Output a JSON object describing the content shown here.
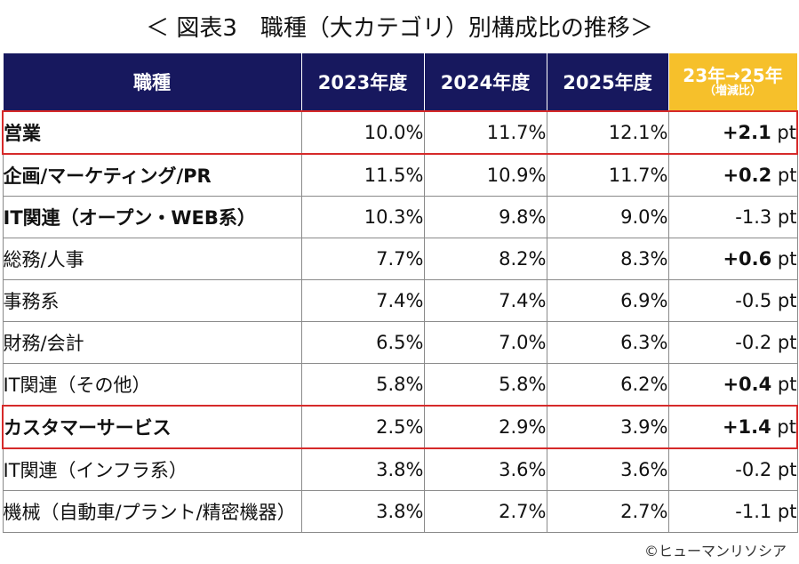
{
  "title": "＜ 図表3　職種（大カテゴリ）別構成比の推移＞",
  "copyright": "©ヒューマンリソシア",
  "chart_data": {
    "type": "table",
    "title": "＜ 図表3　職種（大カテゴリ）別構成比の推移＞",
    "columns": [
      "職種",
      "2023年度",
      "2024年度",
      "2025年度",
      "23年→25年",
      "（増減比）"
    ],
    "unit": "%",
    "highlight_color": "#d62a2a",
    "header_color": "#17185e",
    "diff_header_color": "#f6c02b",
    "rows": [
      {
        "job": "営業",
        "y2023": "10.0%",
        "y2024": "11.7%",
        "y2025": "12.1%",
        "diff": "+2.1",
        "diff_unit": "pt",
        "highlighted": true,
        "bold_label": true
      },
      {
        "job": "企画/マーケティング/PR",
        "y2023": "11.5%",
        "y2024": "10.9%",
        "y2025": "11.7%",
        "diff": "+0.2",
        "diff_unit": "pt",
        "highlighted": false,
        "bold_label": true
      },
      {
        "job": "IT関連（オープン・WEB系）",
        "y2023": "10.3%",
        "y2024": "9.8%",
        "y2025": "9.0%",
        "diff": "-1.3",
        "diff_unit": "pt",
        "highlighted": false,
        "bold_label": true
      },
      {
        "job": "総務/人事",
        "y2023": "7.7%",
        "y2024": "8.2%",
        "y2025": "8.3%",
        "diff": "+0.6",
        "diff_unit": "pt",
        "highlighted": false,
        "bold_label": false
      },
      {
        "job": "事務系",
        "y2023": "7.4%",
        "y2024": "7.4%",
        "y2025": "6.9%",
        "diff": "-0.5",
        "diff_unit": "pt",
        "highlighted": false,
        "bold_label": false
      },
      {
        "job": "財務/会計",
        "y2023": "6.5%",
        "y2024": "7.0%",
        "y2025": "6.3%",
        "diff": "-0.2",
        "diff_unit": "pt",
        "highlighted": false,
        "bold_label": false
      },
      {
        "job": "IT関連（その他）",
        "y2023": "5.8%",
        "y2024": "5.8%",
        "y2025": "6.2%",
        "diff": "+0.4",
        "diff_unit": "pt",
        "highlighted": false,
        "bold_label": false
      },
      {
        "job": "カスタマーサービス",
        "y2023": "2.5%",
        "y2024": "2.9%",
        "y2025": "3.9%",
        "diff": "+1.4",
        "diff_unit": "pt",
        "highlighted": true,
        "bold_label": true
      },
      {
        "job": "IT関連（インフラ系）",
        "y2023": "3.8%",
        "y2024": "3.6%",
        "y2025": "3.6%",
        "diff": "-0.2",
        "diff_unit": "pt",
        "highlighted": false,
        "bold_label": false
      },
      {
        "job": "機械（自動車/プラント/精密機器）",
        "y2023": "3.8%",
        "y2024": "2.7%",
        "y2025": "2.7%",
        "diff": "-1.1",
        "diff_unit": "pt",
        "highlighted": false,
        "bold_label": false
      }
    ]
  }
}
